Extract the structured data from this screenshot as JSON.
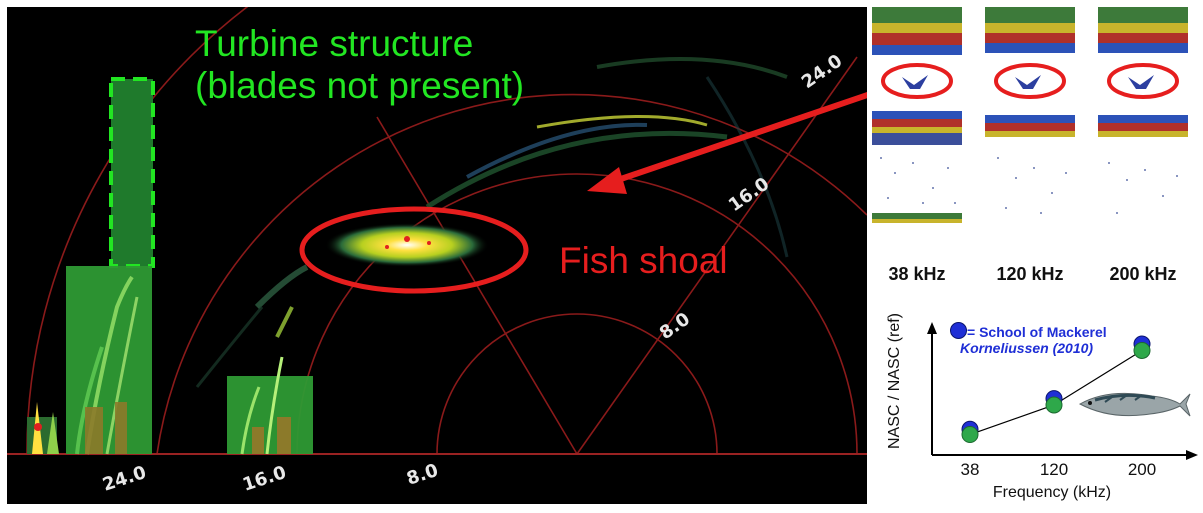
{
  "sonar": {
    "annotations": {
      "turbine_line1": "Turbine structure",
      "turbine_line2": "(blades not present)",
      "fish_shoal": "Fish shoal"
    },
    "range_labels_arc": [
      "24.0",
      "16.0",
      "8.0"
    ],
    "range_labels_axis": [
      "24.0",
      "16.0",
      "8.0"
    ]
  },
  "echograms": {
    "panels": [
      {
        "label": "38 kHz"
      },
      {
        "label": "120 kHz"
      },
      {
        "label": "200 kHz"
      }
    ]
  },
  "chart_data": {
    "type": "line",
    "legend": "= School of Mackerel",
    "citation": "Korneliussen (2010)",
    "xlabel": "Frequency (kHz)",
    "ylabel": "NASC / NASC (ref)",
    "x_ticks": [
      "38",
      "120",
      "200"
    ],
    "series": [
      {
        "name": "School of Mackerel",
        "values": [
          1.0,
          1.27,
          1.75
        ],
        "color": "#1f2fd6"
      },
      {
        "values": [
          0.98,
          1.24,
          1.72
        ],
        "color": "#2ea84a"
      }
    ]
  },
  "colors": {
    "background": "#000000",
    "range_rings": "#8a1a1a",
    "turbine_highlight": "#22e622",
    "fish_highlight": "#e61e1e",
    "arrow": "#e61e1e"
  }
}
